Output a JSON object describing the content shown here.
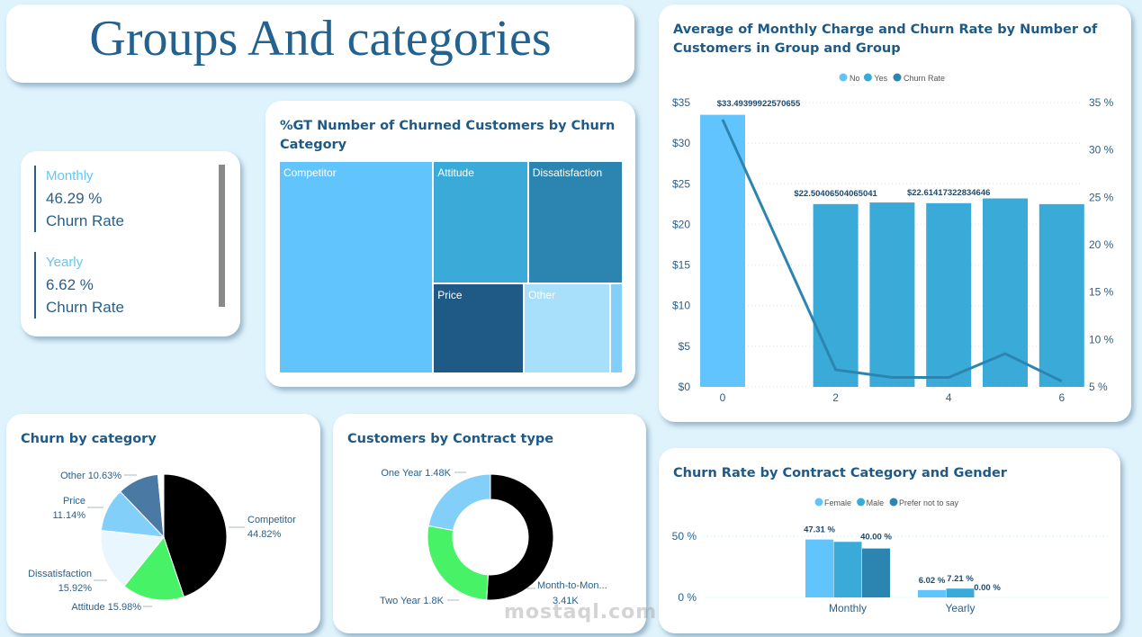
{
  "page_title": "Groups And categories",
  "kpis": [
    {
      "label": "Monthly",
      "value": "46.29 %",
      "caption": "Churn Rate"
    },
    {
      "label": "Yearly",
      "value": "6.62 %",
      "caption": "Churn Rate"
    }
  ],
  "watermark": "mostaql.com",
  "colors": {
    "light_blue": "#62c4fc",
    "mid_blue": "#3aaad8",
    "steel_blue": "#2b85b0",
    "navy": "#1f5a86",
    "pale_blue": "#a8dffb",
    "black": "#000000",
    "green": "#48f266",
    "very_pale": "#eaf6fd",
    "slate": "#4a7aa3",
    "sky": "#82cffa"
  },
  "chart_data": [
    {
      "id": "treemap",
      "type": "treemap",
      "title": "%GT Number of Churned Customers by Churn Category",
      "categories": [
        "Competitor",
        "Attitude",
        "Dissatisfaction",
        "Price",
        "Other",
        "(unlabeled)"
      ],
      "values": [
        44.82,
        15.98,
        15.92,
        11.14,
        10.63,
        1.51
      ]
    },
    {
      "id": "combo",
      "type": "bar",
      "title": "Average of Monthly Charge and Churn Rate by Number of Customers in Group and Group",
      "legend": [
        "No",
        "Yes",
        "Churn Rate"
      ],
      "legend_position": "top-center",
      "x": [
        0,
        2,
        3,
        4,
        5,
        6
      ],
      "x_ticks": [
        "0",
        "2",
        "4",
        "6"
      ],
      "series": [
        {
          "name": "No",
          "type": "bar",
          "values": [
            33.49399922570655,
            null,
            null,
            null,
            null,
            null
          ]
        },
        {
          "name": "Yes",
          "type": "bar",
          "values": [
            null,
            22.50406504065041,
            22.7,
            22.61417322834646,
            23.2,
            22.5
          ]
        },
        {
          "name": "Churn Rate",
          "type": "line",
          "axis": "right",
          "values": [
            33.2,
            6.8,
            6.0,
            6.0,
            8.5,
            5.6
          ]
        }
      ],
      "data_labels": [
        "$33.49399922570655",
        "$22.50406504065041",
        "$22.61417322834646"
      ],
      "y_left": {
        "ticks": [
          "$0",
          "$5",
          "$10",
          "$15",
          "$20",
          "$25",
          "$30",
          "$35"
        ],
        "range": [
          0,
          35
        ]
      },
      "y_right": {
        "ticks": [
          "5 %",
          "10 %",
          "15 %",
          "20 %",
          "25 %",
          "30 %",
          "35 %"
        ],
        "range": [
          5,
          35
        ]
      },
      "grid": true
    },
    {
      "id": "pie",
      "type": "pie",
      "title": "Churn by category",
      "slices": [
        {
          "label": "Competitor",
          "pct_label": "44.82%",
          "value": 44.82
        },
        {
          "label": "Attitude",
          "pct_label": "15.98%",
          "value": 15.98
        },
        {
          "label": "Dissatisfaction",
          "pct_label": "15.92%",
          "value": 15.92
        },
        {
          "label": "Price",
          "pct_label": "11.14%",
          "value": 11.14
        },
        {
          "label": "Other",
          "pct_label": "10.63%",
          "value": 10.63
        },
        {
          "label": "",
          "pct_label": "",
          "value": 1.51
        }
      ]
    },
    {
      "id": "donut",
      "type": "pie",
      "title": "Customers by Contract type",
      "slices": [
        {
          "label": "Month-to-Mon...",
          "value_label": "3.41K",
          "value": 3410
        },
        {
          "label": "Two Year",
          "value_label": "1.8K",
          "value": 1800
        },
        {
          "label": "One Year",
          "value_label": "1.48K",
          "value": 1480
        }
      ]
    },
    {
      "id": "cluster",
      "type": "bar",
      "title": "Churn Rate by Contract Category and Gender",
      "legend": [
        "Female",
        "Male",
        "Prefer not to say"
      ],
      "legend_position": "top-center",
      "categories": [
        "Monthly",
        "Yearly"
      ],
      "series": [
        {
          "name": "Female",
          "values": [
            47.31,
            6.02
          ],
          "labels": [
            "47.31 %",
            "6.02 %"
          ]
        },
        {
          "name": "Male",
          "values": [
            45.4,
            7.21
          ],
          "labels": [
            "",
            "7.21 %"
          ]
        },
        {
          "name": "Prefer not to say",
          "values": [
            40.0,
            0.0
          ],
          "labels": [
            "40.00 %",
            "0.00 %"
          ]
        }
      ],
      "y_ticks": [
        "0 %",
        "50 %"
      ],
      "ylim": [
        0,
        50
      ],
      "grid": true
    }
  ]
}
